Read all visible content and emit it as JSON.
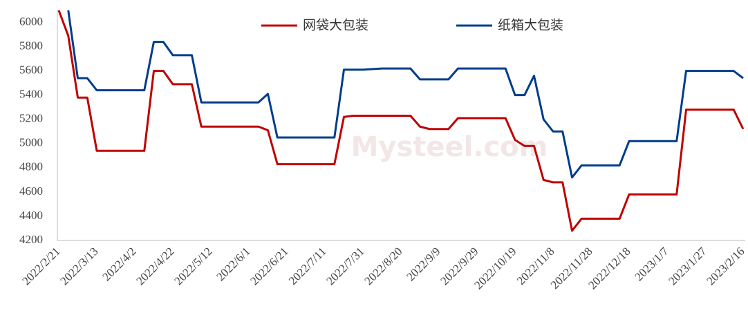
{
  "chart_data": {
    "type": "line",
    "watermark": "Mysteel.com",
    "categories": [
      "2022/2/21",
      null,
      null,
      null,
      "2022/3/13",
      null,
      null,
      null,
      "2022/4/2",
      null,
      null,
      null,
      "2022/4/22",
      null,
      null,
      null,
      "2022/5/12",
      null,
      null,
      null,
      "2022/6/1",
      null,
      null,
      null,
      "2022/6/21",
      null,
      null,
      null,
      "2022/7/11",
      null,
      null,
      null,
      "2022/7/31",
      null,
      null,
      null,
      "2022/8/20",
      null,
      null,
      null,
      "2022/9/9",
      null,
      null,
      null,
      "2022/9/29",
      null,
      null,
      null,
      "2022/10/19",
      null,
      null,
      null,
      "2022/11/8",
      null,
      null,
      null,
      "2022/11/28",
      null,
      null,
      null,
      "2022/12/18",
      null,
      null,
      null,
      "2023/1/7",
      null,
      null,
      null,
      "2023/1/27",
      null,
      null,
      null,
      "2023/2/16"
    ],
    "series": [
      {
        "name": "网袋大包装",
        "color": "#c00000",
        "values": [
          6100,
          5890,
          5380,
          5380,
          4940,
          4940,
          4940,
          4940,
          4940,
          4940,
          5600,
          5600,
          5490,
          5490,
          5490,
          5140,
          5140,
          5140,
          5140,
          5140,
          5140,
          5140,
          5110,
          4830,
          4830,
          4830,
          4830,
          4830,
          4830,
          4830,
          5220,
          5230,
          5230,
          5230,
          5230,
          5230,
          5230,
          5230,
          5140,
          5120,
          5120,
          5120,
          5210,
          5210,
          5210,
          5210,
          5210,
          5210,
          5030,
          4980,
          4980,
          4700,
          4680,
          4680,
          4280,
          4380,
          4380,
          4380,
          4380,
          4380,
          4580,
          4580,
          4580,
          4580,
          4580,
          4580,
          5280,
          5280,
          5280,
          5280,
          5280,
          5280,
          5120
        ]
      },
      {
        "name": "纸箱大包装",
        "color": "#003c8c",
        "values": [
          null,
          6100,
          5540,
          5540,
          5440,
          5440,
          5440,
          5440,
          5440,
          5440,
          5840,
          5840,
          5730,
          5730,
          5730,
          5340,
          5340,
          5340,
          5340,
          5340,
          5340,
          5340,
          5410,
          5050,
          5050,
          5050,
          5050,
          5050,
          5050,
          5050,
          5610,
          5610,
          5610,
          5615,
          5620,
          5620,
          5620,
          5620,
          5530,
          5530,
          5530,
          5530,
          5620,
          5620,
          5620,
          5620,
          5620,
          5620,
          5400,
          5400,
          5560,
          5200,
          5100,
          5100,
          4720,
          4820,
          4820,
          4820,
          4820,
          4820,
          5020,
          5020,
          5020,
          5020,
          5020,
          5020,
          5600,
          5600,
          5600,
          5600,
          5600,
          5600,
          5540
        ]
      }
    ],
    "ylim": [
      4200,
      6100
    ],
    "yticks": [
      4200,
      4400,
      4600,
      4800,
      5000,
      5200,
      5400,
      5600,
      5800,
      6000
    ],
    "grid": false,
    "legend": "top"
  }
}
